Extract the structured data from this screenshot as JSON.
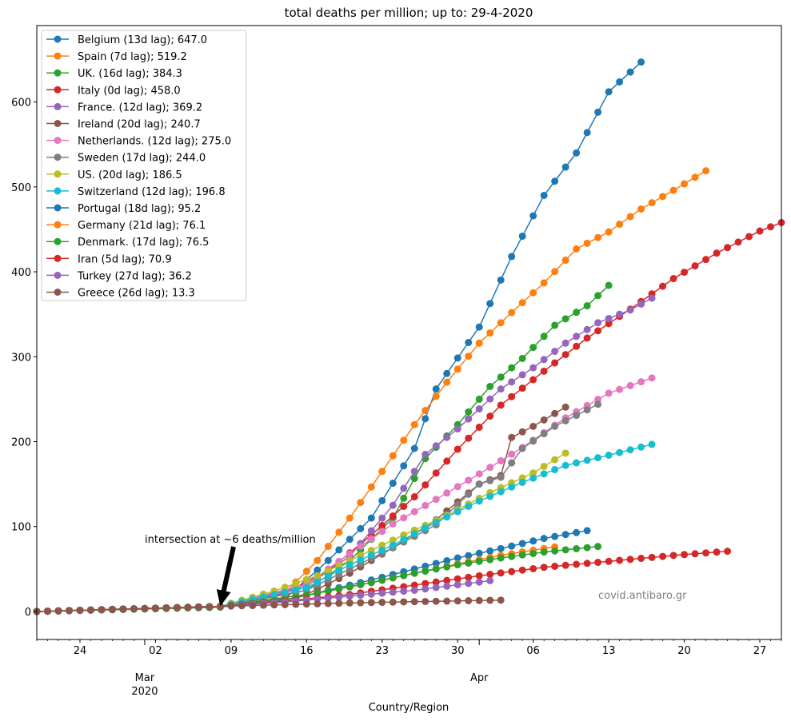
{
  "chart_data": {
    "type": "line",
    "title": "total deaths per million;  up to: 29-4-2020",
    "xlabel": "Country/Region",
    "ylabel": "",
    "x_start": "2020-02-20",
    "x_end": "2020-04-29",
    "ylim": [
      -33,
      690
    ],
    "yticks": [
      0,
      100,
      200,
      300,
      400,
      500,
      600
    ],
    "xticks_major": [
      {
        "label": "24",
        "date": "2020-02-24"
      },
      {
        "label": "02",
        "date": "2020-03-02"
      },
      {
        "label": "09",
        "date": "2020-03-09"
      },
      {
        "label": "16",
        "date": "2020-03-16"
      },
      {
        "label": "23",
        "date": "2020-03-23"
      },
      {
        "label": "30",
        "date": "2020-03-30"
      },
      {
        "label": "06",
        "date": "2020-04-06"
      },
      {
        "label": "13",
        "date": "2020-04-13"
      },
      {
        "label": "20",
        "date": "2020-04-20"
      },
      {
        "label": "27",
        "date": "2020-04-27"
      }
    ],
    "xticks_month": [
      {
        "label": "Mar",
        "sublabel": "2020",
        "date": "2020-03-01"
      },
      {
        "label": "Apr",
        "sublabel": "",
        "date": "2020-04-01"
      }
    ],
    "grid": false,
    "legend_position": "upper left",
    "annotation": {
      "text": "intersection at ~6 deaths/million",
      "x": "2020-03-08",
      "y": 6
    },
    "watermark": "covid.antibaro.gr",
    "series": [
      {
        "name": "Belgium (13d lag); 647.0",
        "color": "#1f77b4",
        "start": "2020-02-20",
        "end": "2020-04-16",
        "points": [
          [
            "2020-02-20",
            0
          ],
          [
            "2020-03-08",
            5
          ],
          [
            "2020-03-14",
            15
          ],
          [
            "2020-03-18",
            60
          ],
          [
            "2020-03-22",
            110
          ],
          [
            "2020-03-26",
            192
          ],
          [
            "2020-03-28",
            262
          ],
          [
            "2020-04-01",
            335
          ],
          [
            "2020-04-04",
            418
          ],
          [
            "2020-04-07",
            490
          ],
          [
            "2020-04-10",
            540
          ],
          [
            "2020-04-13",
            612
          ],
          [
            "2020-04-16",
            647
          ]
        ]
      },
      {
        "name": "Spain (7d lag); 519.2",
        "color": "#ff7f0e",
        "start": "2020-02-20",
        "end": "2020-04-22",
        "points": [
          [
            "2020-02-20",
            0
          ],
          [
            "2020-03-08",
            6
          ],
          [
            "2020-03-14",
            22
          ],
          [
            "2020-03-17",
            60
          ],
          [
            "2020-03-20",
            110
          ],
          [
            "2020-03-23",
            165
          ],
          [
            "2020-03-26",
            220
          ],
          [
            "2020-03-29",
            270
          ],
          [
            "2020-04-01",
            316
          ],
          [
            "2020-04-04",
            352
          ],
          [
            "2020-04-07",
            387
          ],
          [
            "2020-04-10",
            427
          ],
          [
            "2020-04-13",
            447
          ],
          [
            "2020-04-16",
            474
          ],
          [
            "2020-04-19",
            496
          ],
          [
            "2020-04-22",
            519
          ]
        ]
      },
      {
        "name": "UK. (16d lag); 384.3",
        "color": "#2ca02c",
        "start": "2020-02-20",
        "end": "2020-04-13",
        "points": [
          [
            "2020-02-20",
            0
          ],
          [
            "2020-03-08",
            5
          ],
          [
            "2020-03-16",
            25
          ],
          [
            "2020-03-20",
            60
          ],
          [
            "2020-03-24",
            110
          ],
          [
            "2020-03-27",
            180
          ],
          [
            "2020-03-30",
            220
          ],
          [
            "2020-04-02",
            265
          ],
          [
            "2020-04-05",
            298
          ],
          [
            "2020-04-08",
            337
          ],
          [
            "2020-04-11",
            360
          ],
          [
            "2020-04-13",
            384
          ]
        ]
      },
      {
        "name": "Italy (0d lag); 458.0",
        "color": "#d62728",
        "start": "2020-02-20",
        "end": "2020-04-29",
        "points": [
          [
            "2020-02-20",
            0
          ],
          [
            "2020-03-08",
            6
          ],
          [
            "2020-03-14",
            21
          ],
          [
            "2020-03-18",
            48
          ],
          [
            "2020-03-22",
            90
          ],
          [
            "2020-03-26",
            135
          ],
          [
            "2020-03-30",
            191
          ],
          [
            "2020-04-03",
            243
          ],
          [
            "2020-04-07",
            283
          ],
          [
            "2020-04-11",
            322
          ],
          [
            "2020-04-15",
            356
          ],
          [
            "2020-04-19",
            392
          ],
          [
            "2020-04-23",
            422
          ],
          [
            "2020-04-27",
            448
          ],
          [
            "2020-04-29",
            458
          ]
        ]
      },
      {
        "name": "France. (12d lag); 369.2",
        "color": "#9467bd",
        "start": "2020-02-20",
        "end": "2020-04-17",
        "points": [
          [
            "2020-02-20",
            0
          ],
          [
            "2020-03-08",
            6
          ],
          [
            "2020-03-16",
            30
          ],
          [
            "2020-03-20",
            65
          ],
          [
            "2020-03-24",
            125
          ],
          [
            "2020-03-27",
            185
          ],
          [
            "2020-03-30",
            215
          ],
          [
            "2020-04-03",
            262
          ],
          [
            "2020-04-06",
            287
          ],
          [
            "2020-04-09",
            316
          ],
          [
            "2020-04-12",
            340
          ],
          [
            "2020-04-15",
            355
          ],
          [
            "2020-04-17",
            369
          ]
        ]
      },
      {
        "name": "Ireland (20d lag); 240.7",
        "color": "#8c564b",
        "start": "2020-02-20",
        "end": "2020-04-09",
        "points": [
          [
            "2020-02-20",
            0
          ],
          [
            "2020-03-08",
            6
          ],
          [
            "2020-03-16",
            20
          ],
          [
            "2020-03-20",
            45
          ],
          [
            "2020-03-24",
            75
          ],
          [
            "2020-03-28",
            108
          ],
          [
            "2020-04-01",
            150
          ],
          [
            "2020-04-03",
            160
          ],
          [
            "2020-04-04",
            205
          ],
          [
            "2020-04-06",
            218
          ],
          [
            "2020-04-09",
            240.7
          ]
        ]
      },
      {
        "name": "Netherlands. (12d lag); 275.0",
        "color": "#e377c2",
        "start": "2020-02-20",
        "end": "2020-04-17",
        "points": [
          [
            "2020-02-20",
            0
          ],
          [
            "2020-03-08",
            6
          ],
          [
            "2020-03-16",
            32
          ],
          [
            "2020-03-20",
            68
          ],
          [
            "2020-03-24",
            103
          ],
          [
            "2020-03-28",
            132
          ],
          [
            "2020-04-01",
            162
          ],
          [
            "2020-04-05",
            193
          ],
          [
            "2020-04-09",
            228
          ],
          [
            "2020-04-13",
            257
          ],
          [
            "2020-04-17",
            275
          ]
        ]
      },
      {
        "name": "Sweden (17d lag); 244.0",
        "color": "#7f7f7f",
        "start": "2020-02-20",
        "end": "2020-04-12",
        "points": [
          [
            "2020-02-20",
            0
          ],
          [
            "2020-03-08",
            6
          ],
          [
            "2020-03-16",
            25
          ],
          [
            "2020-03-20",
            50
          ],
          [
            "2020-03-24",
            75
          ],
          [
            "2020-03-28",
            102
          ],
          [
            "2020-04-01",
            150
          ],
          [
            "2020-04-03",
            158
          ],
          [
            "2020-04-05",
            192
          ],
          [
            "2020-04-08",
            218
          ],
          [
            "2020-04-12",
            244
          ]
        ]
      },
      {
        "name": "US. (20d lag); 186.5",
        "color": "#bcbd22",
        "start": "2020-02-20",
        "end": "2020-04-09",
        "points": [
          [
            "2020-02-20",
            0
          ],
          [
            "2020-03-08",
            6
          ],
          [
            "2020-03-13",
            24
          ],
          [
            "2020-03-17",
            42
          ],
          [
            "2020-03-21",
            66
          ],
          [
            "2020-03-25",
            90
          ],
          [
            "2020-03-29",
            113
          ],
          [
            "2020-04-02",
            140
          ],
          [
            "2020-04-06",
            163
          ],
          [
            "2020-04-09",
            186.5
          ]
        ]
      },
      {
        "name": "Switzerland (12d lag); 196.8",
        "color": "#17becf",
        "start": "2020-02-20",
        "end": "2020-04-17",
        "points": [
          [
            "2020-02-20",
            0
          ],
          [
            "2020-03-08",
            6
          ],
          [
            "2020-03-16",
            28
          ],
          [
            "2020-03-20",
            55
          ],
          [
            "2020-03-24",
            78
          ],
          [
            "2020-03-28",
            105
          ],
          [
            "2020-04-01",
            130
          ],
          [
            "2020-04-05",
            152
          ],
          [
            "2020-04-09",
            172
          ],
          [
            "2020-04-13",
            184
          ],
          [
            "2020-04-17",
            196.8
          ]
        ]
      },
      {
        "name": "Portugal (18d lag); 95.2",
        "color": "#1f77b4",
        "start": "2020-02-20",
        "end": "2020-04-11",
        "points": [
          [
            "2020-02-20",
            0
          ],
          [
            "2020-03-08",
            6
          ],
          [
            "2020-03-14",
            13
          ],
          [
            "2020-03-18",
            25
          ],
          [
            "2020-03-22",
            37
          ],
          [
            "2020-03-26",
            50
          ],
          [
            "2020-03-30",
            63
          ],
          [
            "2020-04-03",
            74
          ],
          [
            "2020-04-07",
            86
          ],
          [
            "2020-04-11",
            95.2
          ]
        ]
      },
      {
        "name": "Germany (21d lag); 76.1",
        "color": "#ff7f0e",
        "start": "2020-02-20",
        "end": "2020-04-08",
        "points": [
          [
            "2020-02-20",
            0
          ],
          [
            "2020-03-08",
            6
          ],
          [
            "2020-03-14",
            14
          ],
          [
            "2020-03-18",
            24
          ],
          [
            "2020-03-22",
            34
          ],
          [
            "2020-03-26",
            45
          ],
          [
            "2020-03-30",
            56
          ],
          [
            "2020-04-03",
            66
          ],
          [
            "2020-04-08",
            76.1
          ]
        ]
      },
      {
        "name": "Denmark. (17d lag); 76.5",
        "color": "#2ca02c",
        "start": "2020-02-20",
        "end": "2020-04-12",
        "points": [
          [
            "2020-02-20",
            0
          ],
          [
            "2020-03-08",
            6
          ],
          [
            "2020-03-14",
            14
          ],
          [
            "2020-03-18",
            24
          ],
          [
            "2020-03-22",
            34
          ],
          [
            "2020-03-26",
            45
          ],
          [
            "2020-03-30",
            55
          ],
          [
            "2020-04-03",
            63
          ],
          [
            "2020-04-07",
            70
          ],
          [
            "2020-04-12",
            76.5
          ]
        ]
      },
      {
        "name": "Iran (5d lag); 70.9",
        "color": "#d62728",
        "start": "2020-02-20",
        "end": "2020-04-24",
        "points": [
          [
            "2020-02-20",
            0
          ],
          [
            "2020-03-08",
            6
          ],
          [
            "2020-03-14",
            12
          ],
          [
            "2020-03-20",
            20
          ],
          [
            "2020-03-26",
            31
          ],
          [
            "2020-04-01",
            42
          ],
          [
            "2020-04-07",
            52
          ],
          [
            "2020-04-13",
            59
          ],
          [
            "2020-04-19",
            66
          ],
          [
            "2020-04-24",
            70.9
          ]
        ]
      },
      {
        "name": "Turkey (27d lag); 36.2",
        "color": "#9467bd",
        "start": "2020-02-20",
        "end": "2020-04-02",
        "points": [
          [
            "2020-02-20",
            0
          ],
          [
            "2020-03-08",
            6
          ],
          [
            "2020-03-14",
            11
          ],
          [
            "2020-03-20",
            18
          ],
          [
            "2020-03-26",
            25
          ],
          [
            "2020-04-02",
            36.2
          ]
        ]
      },
      {
        "name": "Greece (26d lag); 13.3",
        "color": "#8c564b",
        "start": "2020-02-20",
        "end": "2020-04-03",
        "points": [
          [
            "2020-02-20",
            0
          ],
          [
            "2020-03-08",
            6
          ],
          [
            "2020-03-14",
            8
          ],
          [
            "2020-03-20",
            10
          ],
          [
            "2020-03-26",
            11.5
          ],
          [
            "2020-04-03",
            13.3
          ]
        ]
      }
    ]
  }
}
